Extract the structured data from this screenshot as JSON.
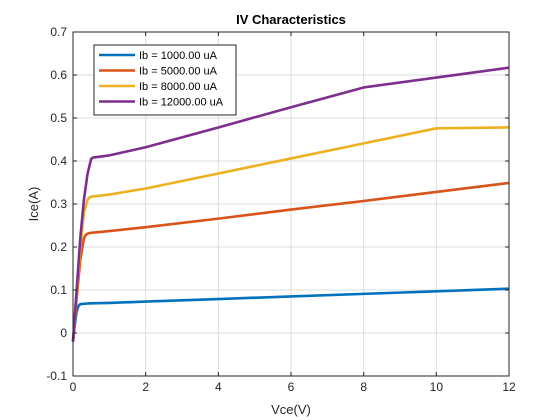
{
  "chart_data": {
    "type": "line",
    "title": "IV Characteristics",
    "xlabel": "Vce(V)",
    "ylabel": "Ice(A)",
    "xlim": [
      0,
      12
    ],
    "ylim": [
      -0.1,
      0.7
    ],
    "xticks": [
      0,
      2,
      4,
      6,
      8,
      10,
      12
    ],
    "yticks": [
      -0.1,
      0,
      0.1,
      0.2,
      0.3,
      0.4,
      0.5,
      0.6,
      0.7
    ],
    "xtick_labels": [
      "0",
      "2",
      "4",
      "6",
      "8",
      "10",
      "12"
    ],
    "ytick_labels": [
      "-0.1",
      "0",
      "0.1",
      "0.2",
      "0.3",
      "0.4",
      "0.5",
      "0.6",
      "0.7"
    ],
    "grid": true,
    "legend_position": "top-left",
    "series": [
      {
        "name": "Ib = 1000.00 uA",
        "color": "#0072BD",
        "x": [
          0,
          0.05,
          0.1,
          0.15,
          0.2,
          0.3,
          0.5,
          1,
          2,
          4,
          6,
          8,
          10,
          12
        ],
        "y": [
          -0.02,
          0.02,
          0.05,
          0.063,
          0.067,
          0.068,
          0.069,
          0.07,
          0.073,
          0.079,
          0.085,
          0.091,
          0.097,
          0.103
        ]
      },
      {
        "name": "Ib = 5000.00 uA",
        "color": "#D95319",
        "x": [
          0,
          0.1,
          0.2,
          0.3,
          0.35,
          0.4,
          0.5,
          1,
          2,
          4,
          6,
          8,
          10,
          12
        ],
        "y": [
          -0.02,
          0.08,
          0.17,
          0.22,
          0.228,
          0.231,
          0.233,
          0.237,
          0.246,
          0.266,
          0.287,
          0.307,
          0.328,
          0.349
        ]
      },
      {
        "name": "Ib = 8000.00 uA",
        "color": "#EDB120",
        "x": [
          0,
          0.1,
          0.2,
          0.3,
          0.4,
          0.45,
          0.5,
          1,
          2,
          4,
          6,
          8,
          10,
          12
        ],
        "y": [
          -0.02,
          0.09,
          0.2,
          0.28,
          0.31,
          0.315,
          0.317,
          0.322,
          0.336,
          0.371,
          0.406,
          0.441,
          0.476,
          0.478
        ]
      },
      {
        "name": "Ib = 12000.00 uA",
        "color": "#7E2F8E",
        "x": [
          0,
          0.1,
          0.2,
          0.3,
          0.4,
          0.5,
          0.55,
          1,
          2,
          4,
          6,
          8,
          10,
          12
        ],
        "y": [
          -0.02,
          0.1,
          0.22,
          0.31,
          0.37,
          0.405,
          0.408,
          0.413,
          0.432,
          0.478,
          0.525,
          0.571,
          0.594,
          0.617
        ]
      }
    ]
  }
}
